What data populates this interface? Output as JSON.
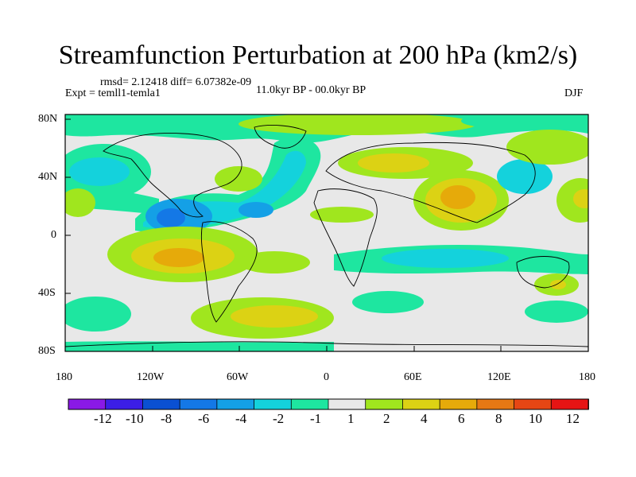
{
  "figure": {
    "title": "Streamfunction Perturbation at 200 hPa (km2/s)",
    "stats": "rmsd= 2.12418 diff= 6.07382e-09",
    "experiment": "Expt = temll1-temla1",
    "period": "11.0kyr BP - 00.0kyr BP",
    "season": "DJF"
  },
  "map": {
    "latitude_labels": [
      "80N",
      "40N",
      "0",
      "40S",
      "80S"
    ],
    "longitude_labels": [
      "180",
      "120W",
      "60W",
      "0",
      "60E",
      "120E",
      "180"
    ],
    "background_color": "#e8e8e8",
    "coastline_color": "#000000",
    "regions": [
      {
        "name": "n-pacific-trough",
        "level": "-2"
      },
      {
        "name": "arctic-band",
        "level": "-2"
      },
      {
        "name": "atlantic-tongue",
        "level": "-2"
      },
      {
        "name": "gulf-of-mexico-low",
        "level": "-6"
      },
      {
        "name": "s-pacific-high",
        "level": "6"
      },
      {
        "name": "asia-high",
        "level": "6"
      },
      {
        "name": "s-indian-ocean-band",
        "level": "-2"
      },
      {
        "name": "southern-ocean-high",
        "level": "4"
      }
    ]
  },
  "colorbar": {
    "labels": [
      "-12",
      "-10",
      "-8",
      "-6",
      "-4",
      "-2",
      "-1",
      "1",
      "2",
      "4",
      "6",
      "8",
      "10",
      "12"
    ],
    "colors": [
      "#8a19e6",
      "#3c1ee6",
      "#0a50d2",
      "#1478e6",
      "#14a0e6",
      "#14d2dc",
      "#1ee6a0",
      "#e8e8e8",
      "#a0e61e",
      "#dcd214",
      "#e6aa0a",
      "#e67814",
      "#e64614",
      "#e61414"
    ]
  }
}
